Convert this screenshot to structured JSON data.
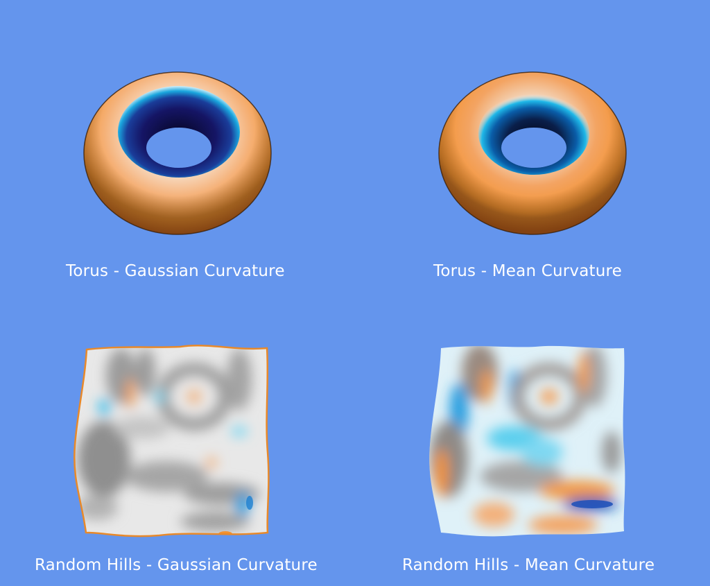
{
  "background_color": "#6495ED",
  "viewports": [
    {
      "surface": "torus",
      "curvature": "gaussian",
      "caption": "Torus - Gaussian Curvature"
    },
    {
      "surface": "torus",
      "curvature": "mean",
      "caption": "Torus - Mean Curvature"
    },
    {
      "surface": "random-hills",
      "curvature": "gaussian",
      "caption": "Random Hills - Gaussian Curvature"
    },
    {
      "surface": "random-hills",
      "curvature": "mean",
      "caption": "Random Hills - Mean Curvature"
    }
  ],
  "colormap": {
    "high": "#ff8c1a",
    "mid": "#f4f4f4",
    "low_light": "#1fb8e8",
    "low_dark": "#141466"
  }
}
